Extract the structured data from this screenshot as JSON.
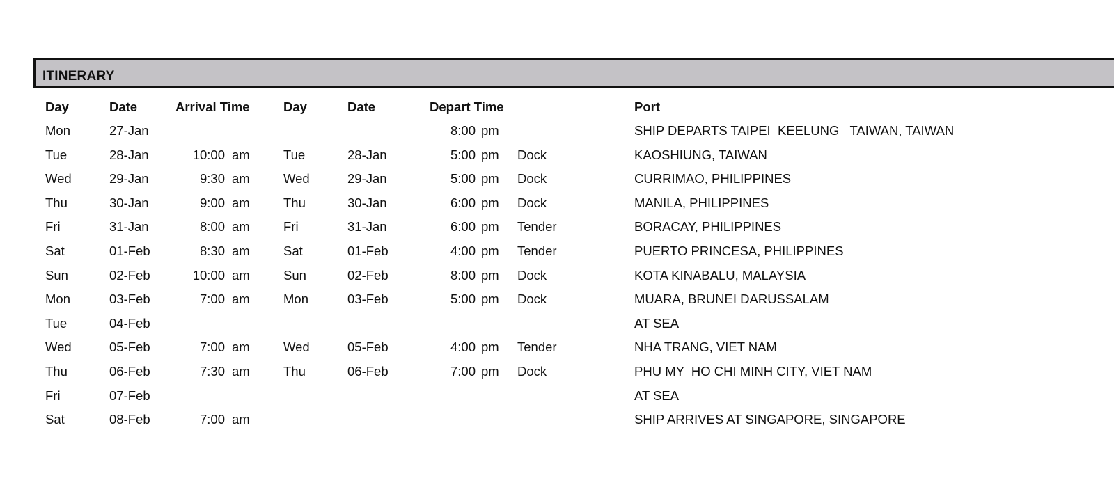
{
  "section_title": "ITINERARY",
  "headers": {
    "day": "Day",
    "date": "Date",
    "arrival_time": "Arrival Time",
    "day2": "Day",
    "date2": "Date",
    "depart_time": "Depart Time",
    "port": "Port"
  },
  "rows": [
    {
      "day": "Mon",
      "date": "27-Jan",
      "arr": "",
      "arr_ap": "",
      "day2": "",
      "date2": "",
      "dep": "8:00",
      "dep_ap": "pm",
      "type": "",
      "port": "SHIP DEPARTS TAIPEI  KEELUNG   TAIWAN, TAIWAN"
    },
    {
      "day": "Tue",
      "date": "28-Jan",
      "arr": "10:00",
      "arr_ap": "am",
      "day2": "Tue",
      "date2": "28-Jan",
      "dep": "5:00",
      "dep_ap": "pm",
      "type": "Dock",
      "port": "KAOSHIUNG, TAIWAN"
    },
    {
      "day": "Wed",
      "date": "29-Jan",
      "arr": "9:30",
      "arr_ap": "am",
      "day2": "Wed",
      "date2": "29-Jan",
      "dep": "5:00",
      "dep_ap": "pm",
      "type": "Dock",
      "port": "CURRIMAO, PHILIPPINES"
    },
    {
      "day": "Thu",
      "date": "30-Jan",
      "arr": "9:00",
      "arr_ap": "am",
      "day2": "Thu",
      "date2": "30-Jan",
      "dep": "6:00",
      "dep_ap": "pm",
      "type": "Dock",
      "port": "MANILA, PHILIPPINES"
    },
    {
      "day": "Fri",
      "date": "31-Jan",
      "arr": "8:00",
      "arr_ap": "am",
      "day2": "Fri",
      "date2": "31-Jan",
      "dep": "6:00",
      "dep_ap": "pm",
      "type": "Tender",
      "port": "BORACAY, PHILIPPINES"
    },
    {
      "day": "Sat",
      "date": "01-Feb",
      "arr": "8:30",
      "arr_ap": "am",
      "day2": "Sat",
      "date2": "01-Feb",
      "dep": "4:00",
      "dep_ap": "pm",
      "type": "Tender",
      "port": "PUERTO PRINCESA, PHILIPPINES"
    },
    {
      "day": "Sun",
      "date": "02-Feb",
      "arr": "10:00",
      "arr_ap": "am",
      "day2": "Sun",
      "date2": "02-Feb",
      "dep": "8:00",
      "dep_ap": "pm",
      "type": "Dock",
      "port": "KOTA KINABALU, MALAYSIA"
    },
    {
      "day": "Mon",
      "date": "03-Feb",
      "arr": "7:00",
      "arr_ap": "am",
      "day2": "Mon",
      "date2": "03-Feb",
      "dep": "5:00",
      "dep_ap": "pm",
      "type": "Dock",
      "port": "MUARA, BRUNEI DARUSSALAM"
    },
    {
      "day": "Tue",
      "date": "04-Feb",
      "arr": "",
      "arr_ap": "",
      "day2": "",
      "date2": "",
      "dep": "",
      "dep_ap": "",
      "type": "",
      "port": "AT SEA"
    },
    {
      "day": "Wed",
      "date": "05-Feb",
      "arr": "7:00",
      "arr_ap": "am",
      "day2": "Wed",
      "date2": "05-Feb",
      "dep": "4:00",
      "dep_ap": "pm",
      "type": "Tender",
      "port": "NHA TRANG, VIET NAM"
    },
    {
      "day": "Thu",
      "date": "06-Feb",
      "arr": "7:30",
      "arr_ap": "am",
      "day2": "Thu",
      "date2": "06-Feb",
      "dep": "7:00",
      "dep_ap": "pm",
      "type": "Dock",
      "port": "PHU MY  HO CHI MINH CITY, VIET NAM"
    },
    {
      "day": "Fri",
      "date": "07-Feb",
      "arr": "",
      "arr_ap": "",
      "day2": "",
      "date2": "",
      "dep": "",
      "dep_ap": "",
      "type": "",
      "port": "AT SEA"
    },
    {
      "day": "Sat",
      "date": "08-Feb",
      "arr": "7:00",
      "arr_ap": "am",
      "day2": "",
      "date2": "",
      "dep": "",
      "dep_ap": "",
      "type": "",
      "port": "SHIP ARRIVES AT SINGAPORE, SINGAPORE"
    }
  ]
}
